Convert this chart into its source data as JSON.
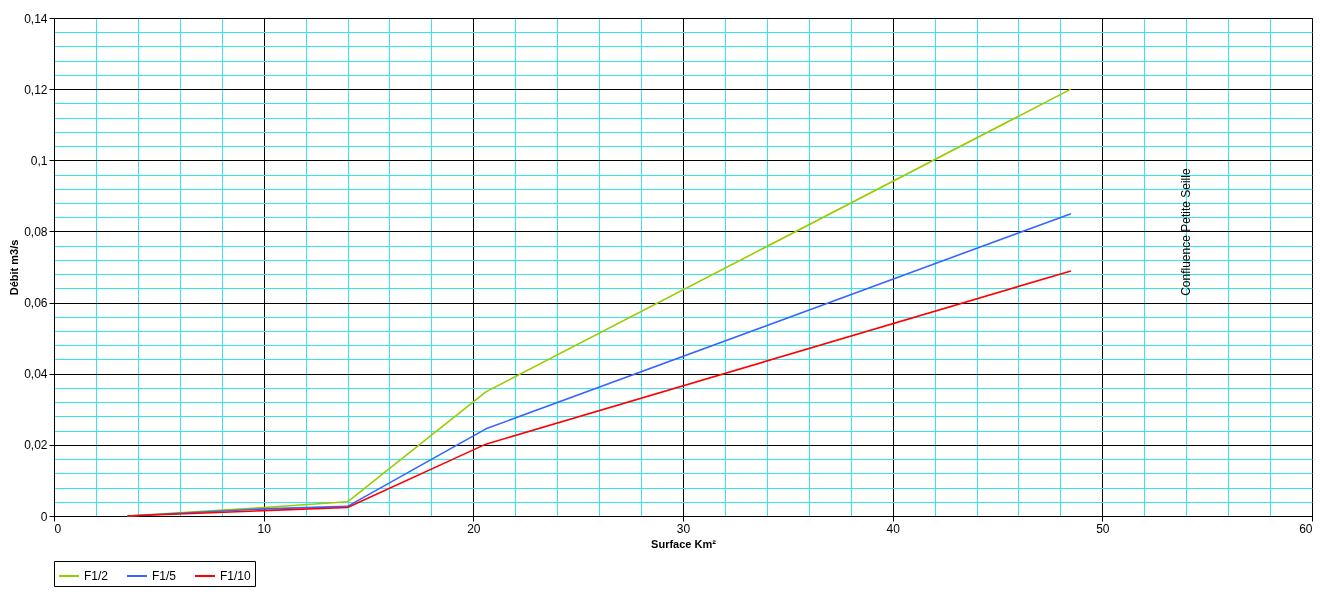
{
  "chart_data": {
    "type": "line",
    "xlabel": "Surface Km²",
    "ylabel": "Débit m3/s",
    "x": [
      3.5,
      10,
      14,
      20.6,
      48.5
    ],
    "series": [
      {
        "name": "F1/2",
        "color": "#99cc00",
        "values": [
          0,
          0.0024,
          0.004,
          0.0349,
          0.12
        ]
      },
      {
        "name": "F1/5",
        "color": "#3366ff",
        "values": [
          0,
          0.002,
          0.0027,
          0.0245,
          0.085
        ]
      },
      {
        "name": "F1/10",
        "color": "#ff0000",
        "values": [
          0,
          0.0015,
          0.0024,
          0.0202,
          0.0689
        ]
      }
    ],
    "xlim": [
      0,
      60
    ],
    "xticks": [
      0,
      {
        "value": 2,
        "label": null
      },
      {
        "value": 4,
        "label": null
      },
      {
        "value": 6,
        "label": null
      },
      {
        "value": 8,
        "label": null
      },
      10,
      {
        "value": 12,
        "label": null
      },
      {
        "value": 14,
        "label": null
      },
      {
        "value": 16,
        "label": null
      },
      {
        "value": 18,
        "label": null
      },
      20,
      {
        "value": 22,
        "label": null
      },
      {
        "value": 24,
        "label": null
      },
      {
        "value": 26,
        "label": null
      },
      {
        "value": 28,
        "label": null
      },
      30,
      {
        "value": 32,
        "label": null
      },
      {
        "value": 34,
        "label": null
      },
      {
        "value": 36,
        "label": null
      },
      {
        "value": 38,
        "label": null
      },
      40,
      {
        "value": 42,
        "label": null
      },
      {
        "value": 44,
        "label": null
      },
      {
        "value": 46,
        "label": null
      },
      {
        "value": 48,
        "label": null
      },
      50,
      {
        "value": 52,
        "label": null
      },
      {
        "value": 54,
        "label": null
      },
      {
        "value": 56,
        "label": null
      },
      {
        "value": 58,
        "label": null
      },
      60
    ],
    "ylim": [
      0,
      0.14
    ],
    "yticks": [
      0,
      {
        "value": 0.004,
        "label": null
      },
      {
        "value": 0.008,
        "label": null
      },
      {
        "value": 0.012,
        "label": null
      },
      {
        "value": 0.016,
        "label": null
      },
      {
        "value": 0.02,
        "label": "0,02"
      },
      {
        "value": 0.024,
        "label": null
      },
      {
        "value": 0.028,
        "label": null
      },
      {
        "value": 0.032,
        "label": null
      },
      {
        "value": 0.036,
        "label": null
      },
      {
        "value": 0.04,
        "label": "0,04"
      },
      {
        "value": 0.044,
        "label": null
      },
      {
        "value": 0.048,
        "label": null
      },
      {
        "value": 0.052,
        "label": null
      },
      {
        "value": 0.056,
        "label": null
      },
      {
        "value": 0.06,
        "label": "0,06"
      },
      {
        "value": 0.064,
        "label": null
      },
      {
        "value": 0.068,
        "label": null
      },
      {
        "value": 0.072,
        "label": null
      },
      {
        "value": 0.076,
        "label": null
      },
      {
        "value": 0.08,
        "label": "0,08"
      },
      {
        "value": 0.084,
        "label": null
      },
      {
        "value": 0.088,
        "label": null
      },
      {
        "value": 0.092,
        "label": null
      },
      {
        "value": 0.096,
        "label": null
      },
      {
        "value": 0.1,
        "label": "0,1"
      },
      {
        "value": 0.104,
        "label": null
      },
      {
        "value": 0.108,
        "label": null
      },
      {
        "value": 0.112,
        "label": null
      },
      {
        "value": 0.116,
        "label": null
      },
      {
        "value": 0.12,
        "label": "0,12"
      },
      {
        "value": 0.124,
        "label": null
      },
      {
        "value": 0.128,
        "label": null
      },
      {
        "value": 0.132,
        "label": null
      },
      {
        "value": 0.136,
        "label": null
      },
      {
        "value": 0.14,
        "label": "0,14"
      }
    ],
    "annotations": [
      "Confluence Petite Seille"
    ],
    "grid": true,
    "legend": "bottom",
    "marker": "none",
    "line_style": "solid"
  }
}
